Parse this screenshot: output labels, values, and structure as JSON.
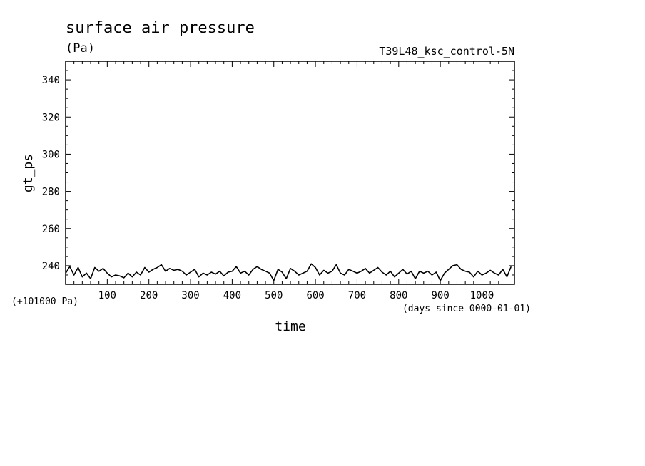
{
  "chart_data": {
    "type": "line",
    "title": "surface air pressure",
    "units_label": "(Pa)",
    "run_label": "T39L48_ksc_control-5N",
    "xlabel": "time",
    "x_units_label": "(days since 0000-01-01)",
    "ylabel": "gt_ps",
    "y_offset_label": "(+101000 Pa)",
    "xlim": [
      0,
      1078
    ],
    "ylim": [
      230,
      350
    ],
    "x_ticks_major": [
      100,
      200,
      300,
      400,
      500,
      600,
      700,
      800,
      900,
      1000
    ],
    "x_tick_labels": [
      "100",
      "200",
      "300",
      "400",
      "500",
      "600",
      "700",
      "800",
      "900",
      "1000"
    ],
    "y_ticks_major": [
      240,
      260,
      280,
      300,
      320,
      340
    ],
    "y_tick_labels": [
      "240",
      "260",
      "280",
      "300",
      "320",
      "340"
    ],
    "grid": false,
    "line_color": "#000000",
    "series": [
      {
        "x": [
          0,
          10,
          20,
          30,
          40,
          50,
          60,
          70,
          80,
          90,
          100,
          110,
          120,
          130,
          140,
          150,
          160,
          170,
          180,
          190,
          200,
          210,
          220,
          230,
          240,
          250,
          260,
          270,
          280,
          290,
          300,
          310,
          320,
          330,
          340,
          350,
          360,
          370,
          380,
          390,
          400,
          410,
          420,
          430,
          440,
          450,
          460,
          470,
          480,
          490,
          500,
          510,
          520,
          530,
          540,
          550,
          560,
          570,
          580,
          590,
          600,
          610,
          620,
          630,
          640,
          650,
          660,
          670,
          680,
          690,
          700,
          710,
          720,
          730,
          740,
          750,
          760,
          770,
          780,
          790,
          800,
          810,
          820,
          830,
          840,
          850,
          860,
          870,
          880,
          890,
          900,
          910,
          920,
          930,
          940,
          950,
          960,
          970,
          980,
          990,
          1000,
          1010,
          1020,
          1030,
          1040,
          1050,
          1060,
          1070
        ],
        "y": [
          236,
          239.5,
          235,
          239,
          234,
          236,
          233,
          239,
          237,
          238.5,
          236,
          234,
          235,
          234.5,
          233.5,
          236,
          234,
          236.5,
          235,
          239,
          236.5,
          238,
          239,
          240.5,
          237,
          238.5,
          237.5,
          238,
          237,
          235,
          236.5,
          238,
          234,
          236,
          235,
          236.5,
          235.5,
          237,
          234.5,
          236.5,
          237,
          239.5,
          236,
          237,
          235,
          238,
          239.5,
          238,
          237,
          236,
          232,
          238,
          236.5,
          233,
          238.5,
          237,
          235,
          236,
          237,
          241,
          239,
          235,
          237.5,
          236,
          237,
          240.5,
          236,
          235,
          238,
          237,
          236,
          237,
          238.5,
          236,
          237.5,
          239,
          236.5,
          235,
          237,
          234,
          236,
          238,
          235.5,
          237,
          233,
          237,
          236,
          237,
          235,
          236.5,
          232,
          236,
          238,
          240,
          240.5,
          238,
          237,
          236.5,
          234,
          237,
          235,
          236,
          237.5,
          236,
          235,
          238,
          234,
          239.5
        ]
      }
    ]
  }
}
